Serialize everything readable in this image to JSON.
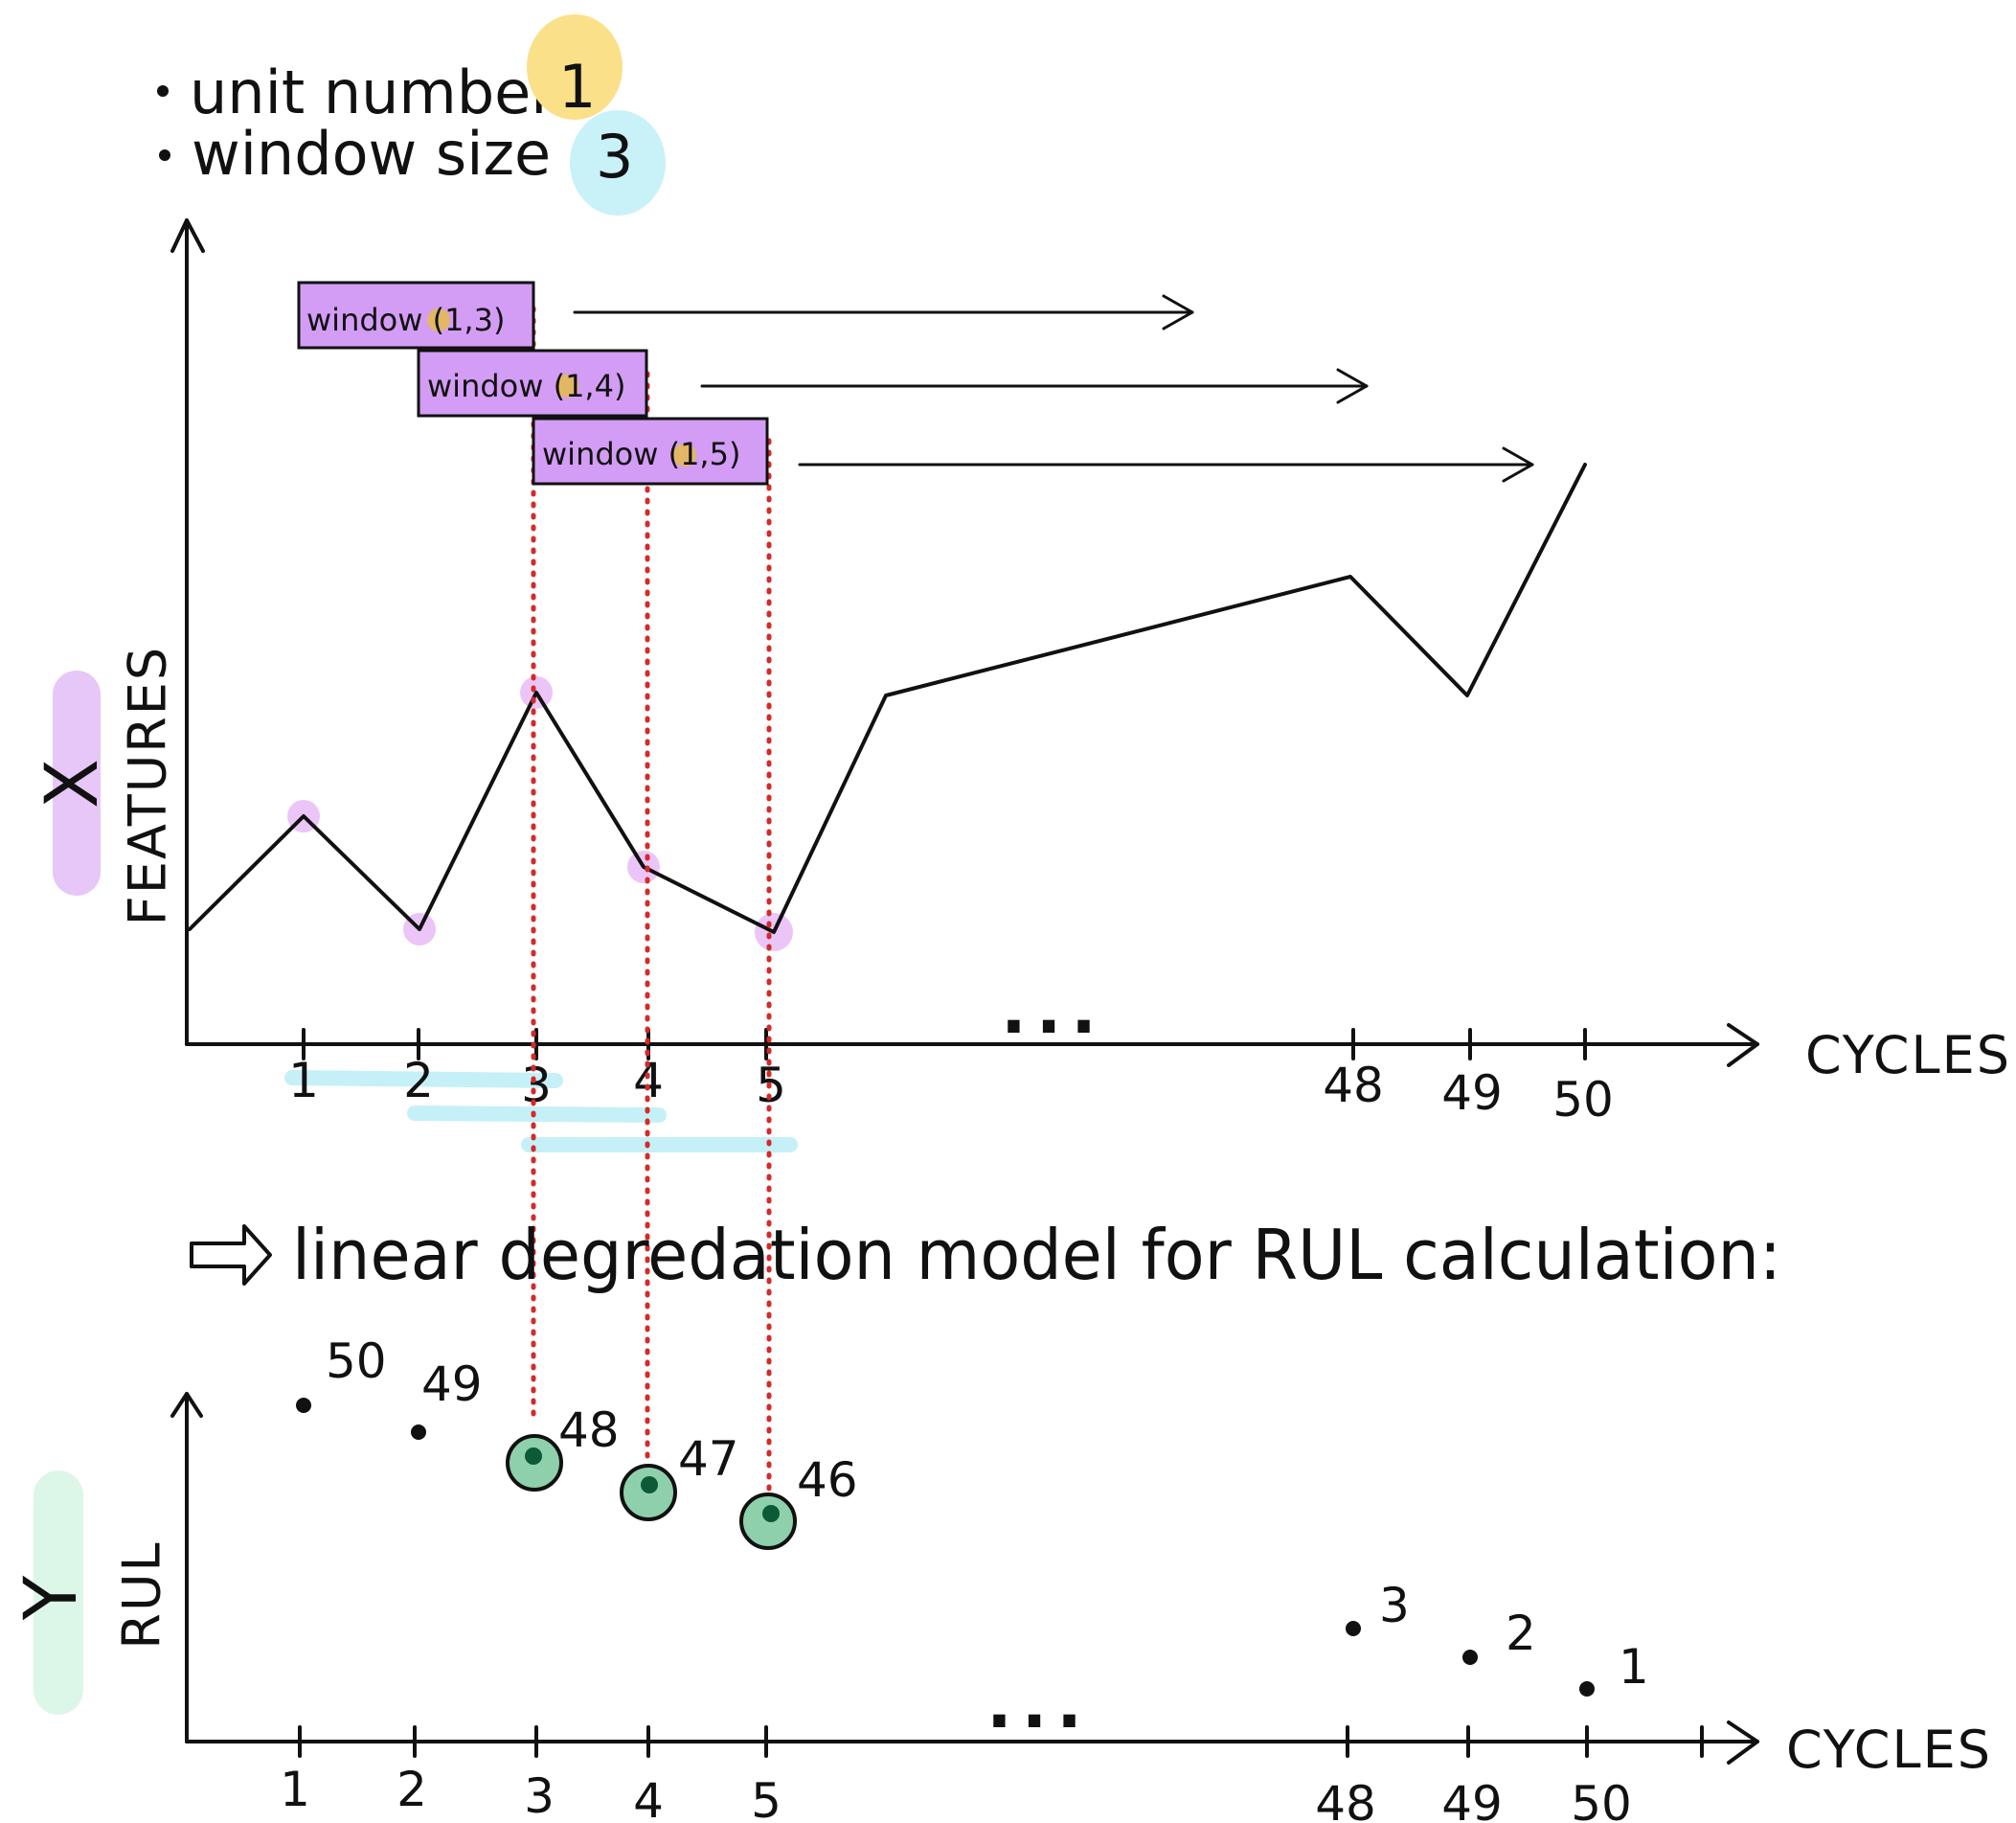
{
  "header": {
    "unit_label": "unit number",
    "unit_value": "1",
    "window_label": "window size",
    "window_value": "3"
  },
  "features_chart": {
    "y_label": "FEATURES",
    "y_tag": "X",
    "x_label": "CYCLES",
    "x_ticks": [
      "1",
      "2",
      "3",
      "4",
      "5",
      "48",
      "49",
      "50"
    ],
    "ellipsis": "...",
    "windows": [
      {
        "label": "window (1,3)",
        "start": 1,
        "end": 3
      },
      {
        "label": "window (1,4)",
        "start": 2,
        "end": 4
      },
      {
        "label": "window (1,5)",
        "start": 3,
        "end": 5
      }
    ]
  },
  "model_caption": "linear degredation model for RUL calculation:",
  "rul_chart": {
    "y_label": "RUL",
    "y_tag": "Y",
    "x_label": "CYCLES",
    "x_ticks": [
      "1",
      "2",
      "3",
      "4",
      "5",
      "48",
      "49",
      "50"
    ],
    "ellipsis": "...",
    "points": [
      {
        "cycle": 1,
        "rul": 50,
        "label": "50"
      },
      {
        "cycle": 2,
        "rul": 49,
        "label": "49"
      },
      {
        "cycle": 3,
        "rul": 48,
        "label": "48"
      },
      {
        "cycle": 4,
        "rul": 47,
        "label": "47"
      },
      {
        "cycle": 5,
        "rul": 46,
        "label": "46"
      },
      {
        "cycle": 48,
        "rul": 3,
        "label": "3"
      },
      {
        "cycle": 49,
        "rul": 2,
        "label": "2"
      },
      {
        "cycle": 50,
        "rul": 1,
        "label": "1"
      }
    ],
    "highlighted_cycles": [
      3,
      4,
      5
    ]
  },
  "colors": {
    "ink": "#111111",
    "window_fill": "#d39cf5",
    "unit_highlight": "#fbe08a",
    "window_highlight": "#c9f1f8",
    "x_tag": "#e6c7f8",
    "y_tag": "#dcf7e8",
    "feature_point": "#ebc5f8",
    "window_underline": "#c6f0f7",
    "guide_line": "#d42a2a",
    "rul_highlight": "#8ed0ac",
    "rul_core": "#0d5a36"
  }
}
